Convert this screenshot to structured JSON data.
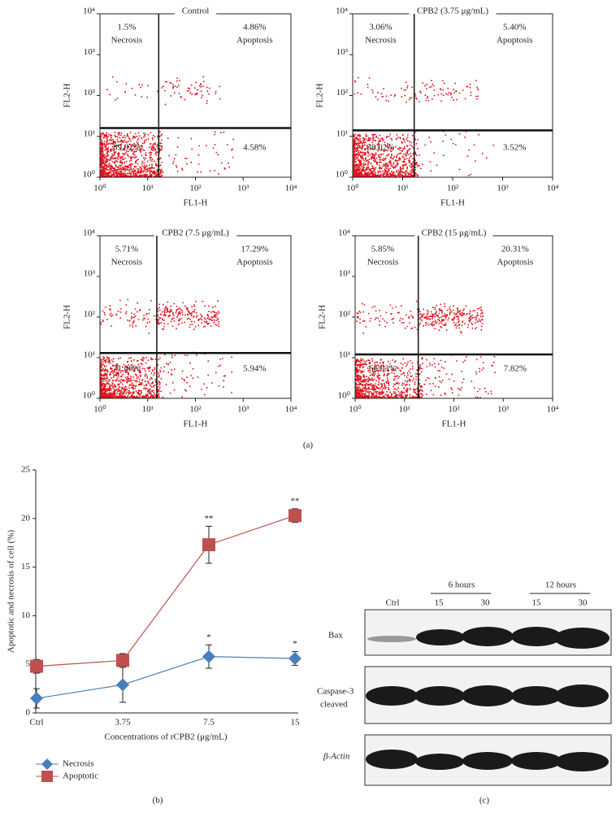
{
  "chart_data": [
    {
      "type": "scatter",
      "title": "Control",
      "xlabel": "FL1-H",
      "ylabel": "FL2-H",
      "log_x": true,
      "log_y": true,
      "color": "#e0101a",
      "xlim": [
        1,
        10000
      ],
      "ylim": [
        1,
        10000
      ],
      "xticks": [
        {
          "value": 1,
          "label": "10⁰"
        },
        {
          "value": 10,
          "label": "10¹"
        },
        {
          "value": 100,
          "label": "10²"
        },
        {
          "value": 1000,
          "label": "10³"
        },
        {
          "value": 10000,
          "label": "10⁴"
        }
      ],
      "yticks": [
        {
          "value": 1,
          "label": "10⁰"
        },
        {
          "value": 10,
          "label": "10¹"
        },
        {
          "value": 100,
          "label": "10²"
        },
        {
          "value": 1000,
          "label": "10³"
        },
        {
          "value": 10000,
          "label": "10⁴"
        }
      ],
      "gate_x": 17,
      "gate_y": 16,
      "quadrants": [
        {
          "name": "Necrosis",
          "value": 1.5,
          "value_label": "1.5%"
        },
        {
          "name": "Apoptosis",
          "value": 4.86,
          "value_label": "4.86%"
        },
        {
          "value": 89.92,
          "value_label": "89.92%"
        },
        {
          "value": 4.58,
          "value_label": "4.58%"
        }
      ]
    },
    {
      "type": "scatter",
      "title": "CPB2 (3.75 μg/mL)",
      "xlabel": "FL1-H",
      "ylabel": "FL2-H",
      "log_x": true,
      "log_y": true,
      "color": "#e0101a",
      "xlim": [
        1,
        10000
      ],
      "ylim": [
        1,
        10000
      ],
      "xticks": [
        {
          "value": 1,
          "label": "10⁰"
        },
        {
          "value": 10,
          "label": "10¹"
        },
        {
          "value": 100,
          "label": "10²"
        },
        {
          "value": 1000,
          "label": "10³"
        },
        {
          "value": 10000,
          "label": "10⁴"
        }
      ],
      "yticks": [
        {
          "value": 1,
          "label": "10⁰"
        },
        {
          "value": 10,
          "label": "10¹"
        },
        {
          "value": 100,
          "label": "10²"
        },
        {
          "value": 1000,
          "label": "10³"
        },
        {
          "value": 10000,
          "label": "10⁴"
        }
      ],
      "gate_x": 17,
      "gate_y": 14,
      "quadrants": [
        {
          "name": "Necrosis",
          "value": 3.06,
          "value_label": "3.06%"
        },
        {
          "name": "Apoptosis",
          "value": 5.4,
          "value_label": "5.40%"
        },
        {
          "value": 88.02,
          "value_label": "88.02%"
        },
        {
          "value": 3.52,
          "value_label": "3.52%"
        }
      ]
    },
    {
      "type": "scatter",
      "title": "CPB2 (7.5 μg/mL)",
      "xlabel": "FL1-H",
      "ylabel": "FL2-H",
      "log_x": true,
      "log_y": true,
      "color": "#e0101a",
      "xlim": [
        1,
        10000
      ],
      "ylim": [
        1,
        10000
      ],
      "xticks": [
        {
          "value": 1,
          "label": "10⁰"
        },
        {
          "value": 10,
          "label": "10¹"
        },
        {
          "value": 100,
          "label": "10²"
        },
        {
          "value": 1000,
          "label": "10³"
        },
        {
          "value": 10000,
          "label": "10⁴"
        }
      ],
      "yticks": [
        {
          "value": 1,
          "label": "10⁰"
        },
        {
          "value": 10,
          "label": "10¹"
        },
        {
          "value": 100,
          "label": "10²"
        },
        {
          "value": 1000,
          "label": "10³"
        },
        {
          "value": 10000,
          "label": "10⁴"
        }
      ],
      "gate_x": 15.5,
      "gate_y": 13,
      "quadrants": [
        {
          "name": "Necrosis",
          "value": 5.71,
          "value_label": "5.71%"
        },
        {
          "name": "Apoptosis",
          "value": 17.29,
          "value_label": "17.29%"
        },
        {
          "value": 71.06,
          "value_label": "71.06%"
        },
        {
          "value": 5.94,
          "value_label": "5.94%"
        }
      ]
    },
    {
      "type": "scatter",
      "title": "CPB2 (15 μg/mL)",
      "xlabel": "FL1-H",
      "ylabel": "FL2-H",
      "log_x": true,
      "log_y": true,
      "color": "#e0101a",
      "xlim": [
        1,
        10000
      ],
      "ylim": [
        1,
        10000
      ],
      "xticks": [
        {
          "value": 1,
          "label": "10⁰"
        },
        {
          "value": 10,
          "label": "10¹"
        },
        {
          "value": 100,
          "label": "10²"
        },
        {
          "value": 1000,
          "label": "10³"
        },
        {
          "value": 10000,
          "label": "10⁴"
        }
      ],
      "yticks": [
        {
          "value": 1,
          "label": "10⁰"
        },
        {
          "value": 10,
          "label": "10¹"
        },
        {
          "value": 100,
          "label": "10²"
        },
        {
          "value": 1000,
          "label": "10³"
        },
        {
          "value": 10000,
          "label": "10⁴"
        }
      ],
      "gate_x": 19,
      "gate_y": 12,
      "quadrants": [
        {
          "name": "Necrosis",
          "value": 5.85,
          "value_label": "5.85%"
        },
        {
          "name": "Apoptosis",
          "value": 20.31,
          "value_label": "20.31%"
        },
        {
          "value": 66.03,
          "value_label": "66.03%"
        },
        {
          "value": 7.82,
          "value_label": "7.82%"
        }
      ]
    },
    {
      "type": "line",
      "xlabel": "Concentrations of rCPB2 (μg/mL)",
      "ylabel": "Apoptotic and necrosis of cell (%)",
      "categories": [
        "Ctrl",
        "3.75",
        "7.5",
        "15"
      ],
      "series": [
        {
          "name": "Necrosis",
          "color": "#4a7ebb",
          "marker": "diamond",
          "values": [
            1.5,
            2.9,
            5.8,
            5.6
          ],
          "errors": [
            1.0,
            1.8,
            1.2,
            0.7
          ]
        },
        {
          "name": "Apoptotic",
          "color": "#c0504d",
          "marker": "square",
          "values": [
            4.8,
            5.4,
            17.3,
            20.3
          ],
          "errors": [
            0.7,
            0.7,
            1.9,
            0.7
          ]
        }
      ],
      "significance": [
        {
          "series": 0,
          "index": 2,
          "label": "*"
        },
        {
          "series": 0,
          "index": 3,
          "label": "*"
        },
        {
          "series": 1,
          "index": 2,
          "label": "**"
        },
        {
          "series": 1,
          "index": 3,
          "label": "**"
        }
      ],
      "ylim": [
        0,
        25
      ],
      "yticks": [
        0,
        5,
        10,
        15,
        20,
        25
      ]
    }
  ],
  "panel_labels": [
    "(a)",
    "(b)",
    "(c)"
  ],
  "blot": {
    "groups": [
      "6 hours",
      "12 hours"
    ],
    "lanes": [
      "Ctrl",
      "15",
      "30",
      "15",
      "30"
    ],
    "rows": [
      [
        "Bax"
      ],
      [
        "Caspase-3",
        "cleaved"
      ],
      [
        "β-Actin"
      ]
    ]
  }
}
